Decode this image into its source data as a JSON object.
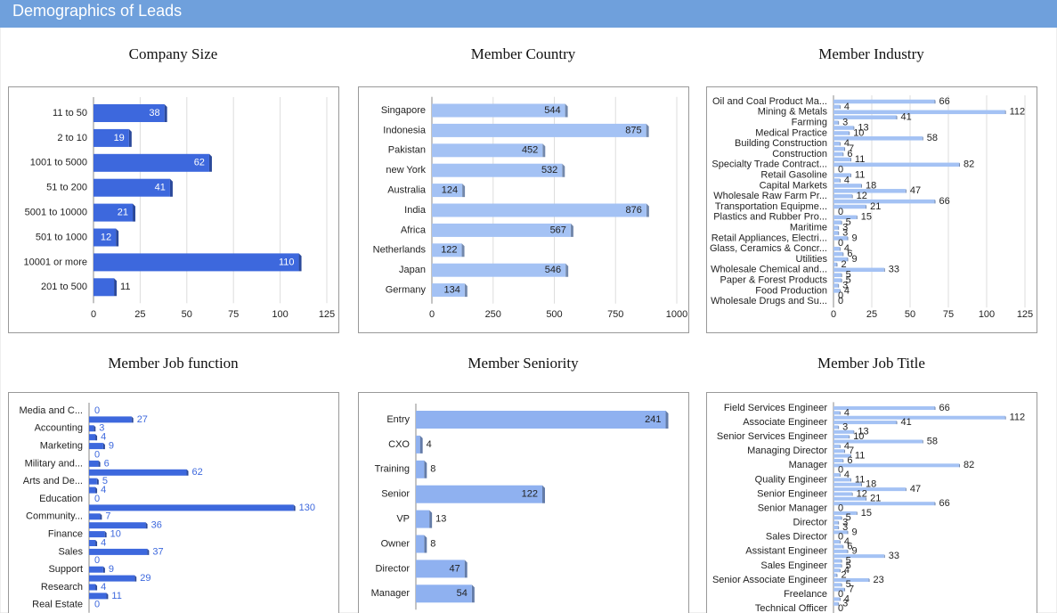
{
  "title": "Demographics of Leads",
  "chart_data": [
    {
      "type": "hbar",
      "title": "Company Size",
      "categories": [
        "11 to 50",
        "2 to 10",
        "1001 to 5000",
        "51 to 200",
        "5001 to 10000",
        "501 to 1000",
        "10001 or more",
        "201 to 500"
      ],
      "values": [
        38,
        19,
        62,
        41,
        21,
        12,
        110,
        11
      ],
      "color": "#3d68dd",
      "xlim": [
        0,
        125
      ],
      "xticks": [
        0,
        25,
        50,
        75,
        100,
        125
      ],
      "grid": true
    },
    {
      "type": "hbar",
      "title": "Member Country",
      "categories": [
        "Singapore",
        "Indonesia",
        "Pakistan",
        "new York",
        "Australia",
        "India",
        "Africa",
        "Netherlands",
        "Japan",
        "Germany"
      ],
      "values": [
        544,
        875,
        452,
        532,
        124,
        876,
        567,
        122,
        546,
        134
      ],
      "color": "#a4c2f4",
      "xlim": [
        0,
        1000
      ],
      "xticks": [
        0,
        250,
        500,
        750,
        1000
      ],
      "grid": true
    },
    {
      "type": "hbar",
      "title": "Member Industry",
      "categories": [
        "Oil and Coal Product Ma...",
        null,
        "Mining & Metals",
        null,
        "Farming",
        null,
        "Medical Practice",
        null,
        "Building Construction",
        null,
        "Construction",
        null,
        "Specialty Trade Contract...",
        null,
        "Retail Gasoline",
        null,
        "Capital Markets",
        null,
        "Wholesale Raw Farm Pr...",
        null,
        "Transportation Equipme...",
        null,
        "Plastics and Rubber Pro...",
        null,
        "Maritime",
        null,
        "Retail Appliances, Electri...",
        null,
        "Glass, Ceramics & Concr...",
        null,
        "Utilities",
        null,
        "Wholesale Chemical and...",
        null,
        "Paper & Forest Products",
        null,
        "Food Production",
        null,
        "Wholesale Drugs and Su..."
      ],
      "values": [
        66,
        4,
        112,
        41,
        3,
        13,
        10,
        58,
        4,
        7,
        6,
        11,
        82,
        0,
        11,
        4,
        18,
        47,
        12,
        66,
        21,
        0,
        15,
        5,
        3,
        3,
        9,
        0,
        4,
        6,
        9,
        2,
        33,
        5,
        5,
        3,
        4,
        0,
        0
      ],
      "color": "#a4c2f4",
      "xlim": [
        0,
        125
      ],
      "xticks": [
        0,
        25,
        50,
        75,
        100,
        125
      ],
      "grid": true
    },
    {
      "type": "hbar",
      "title": "Member Job function",
      "categories": [
        "Media and C...",
        null,
        "Accounting",
        null,
        "Marketing",
        null,
        "Military and...",
        null,
        "Arts and De...",
        null,
        "Education",
        null,
        "Community...",
        null,
        "Finance",
        null,
        "Sales",
        null,
        "Support",
        null,
        "Research",
        null,
        "Real Estate"
      ],
      "values": [
        0,
        27,
        3,
        4,
        9,
        0,
        6,
        62,
        5,
        4,
        0,
        130,
        7,
        36,
        10,
        4,
        37,
        0,
        9,
        29,
        4,
        11,
        0
      ],
      "color": "#3d68dd",
      "xlim": [
        0,
        150
      ],
      "grid": false
    },
    {
      "type": "hbar",
      "title": "Member Seniority",
      "categories": [
        "Entry",
        "CXO",
        "Training",
        "Senior",
        "VP",
        "Owner",
        "Director",
        "Manager"
      ],
      "values": [
        241,
        4,
        8,
        122,
        13,
        8,
        47,
        54
      ],
      "color": "#8fb1f0",
      "xlim": [
        0,
        250
      ],
      "grid": false
    },
    {
      "type": "hbar",
      "title": "Member Job Title",
      "categories": [
        "Field Services Engineer",
        null,
        null,
        "Associate Engineer",
        null,
        null,
        "Senior Services Engineer",
        null,
        null,
        "Managing Director",
        null,
        null,
        "Manager",
        null,
        null,
        "Quality Engineer",
        null,
        null,
        "Senior Engineer",
        null,
        null,
        "Senior Manager",
        null,
        null,
        "Director",
        null,
        null,
        "Sales Director",
        null,
        null,
        "Assistant Engineer",
        null,
        null,
        "Sales Engineer",
        null,
        null,
        "Senior Associate Engineer",
        null,
        null,
        "Freelance",
        null,
        null,
        "Technical Officer"
      ],
      "values": [
        66,
        4,
        112,
        41,
        3,
        13,
        10,
        58,
        4,
        7,
        11,
        6,
        82,
        0,
        4,
        11,
        18,
        47,
        12,
        21,
        66,
        0,
        15,
        5,
        3,
        3,
        9,
        0,
        4,
        6,
        9,
        33,
        5,
        5,
        4,
        2,
        23,
        5,
        7,
        0,
        4,
        3,
        0
      ],
      "color": "#a4c2f4",
      "xlim": [
        0,
        125
      ],
      "grid": false
    }
  ]
}
